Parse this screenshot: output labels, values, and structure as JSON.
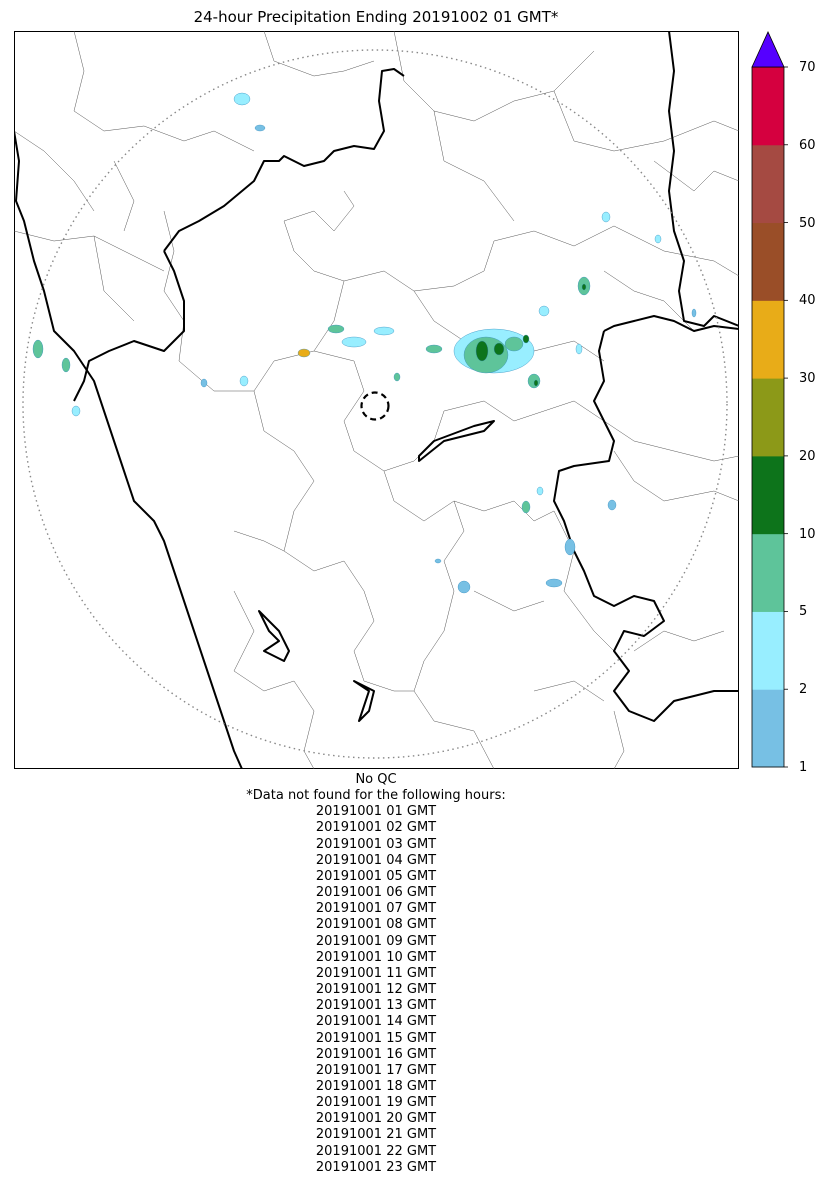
{
  "title": "24-hour Precipitation Ending 20191002 01 GMT*",
  "colorbar": {
    "levels": [
      "1",
      "2",
      "5",
      "10",
      "20",
      "30",
      "40",
      "50",
      "60",
      "70"
    ],
    "colors": [
      "#77c0e4",
      "#98eeff",
      "#5ec49a",
      "#0d741b",
      "#8c9918",
      "#e8ac18",
      "#9a4e28",
      "#a54a42",
      "#d5003f"
    ],
    "extend_color": "#5500ff"
  },
  "map": {
    "radar_site": "center dashed circle",
    "range_ring": "dotted",
    "boundaries": [
      "coastline",
      "state borders",
      "district borders"
    ]
  },
  "qc_note": "No QC",
  "missing_header": "*Data not found for the following hours:",
  "missing_hours": [
    "20191001 01 GMT",
    "20191001 02 GMT",
    "20191001 03 GMT",
    "20191001 04 GMT",
    "20191001 05 GMT",
    "20191001 06 GMT",
    "20191001 07 GMT",
    "20191001 08 GMT",
    "20191001 09 GMT",
    "20191001 10 GMT",
    "20191001 11 GMT",
    "20191001 12 GMT",
    "20191001 13 GMT",
    "20191001 14 GMT",
    "20191001 15 GMT",
    "20191001 16 GMT",
    "20191001 17 GMT",
    "20191001 18 GMT",
    "20191001 19 GMT",
    "20191001 20 GMT",
    "20191001 21 GMT",
    "20191001 22 GMT",
    "20191001 23 GMT"
  ]
}
